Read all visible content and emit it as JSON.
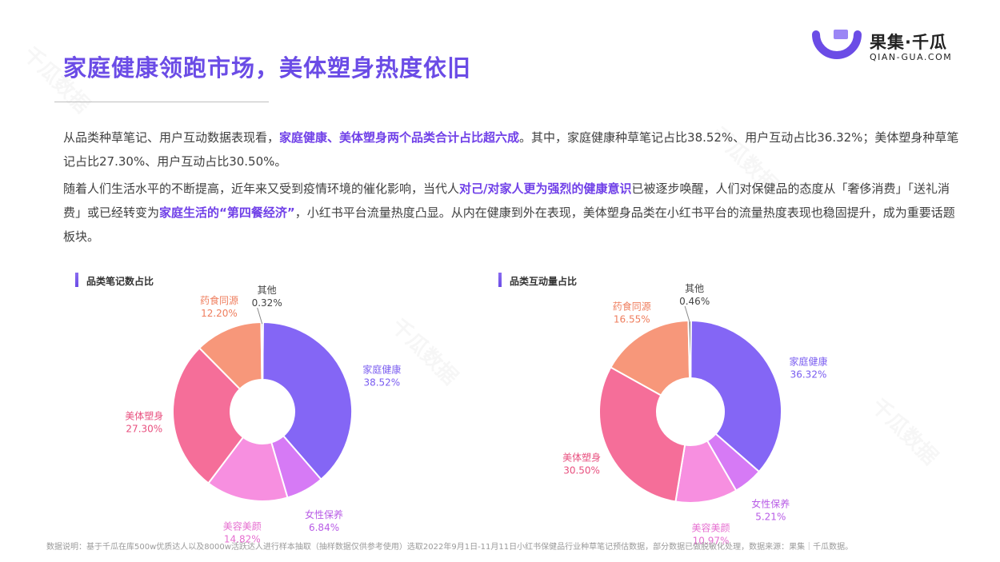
{
  "header": {
    "title": "家庭健康领跑市场，美体塑身热度依旧",
    "logo_cn": "果集·千瓜",
    "logo_en": "QIAN-GUA.COM"
  },
  "body": {
    "p1_a": "从品类种草笔记、用户互动数据表现看，",
    "p1_hl": "家庭健康、美体塑身两个品类合计占比超六成",
    "p1_b": "。其中，家庭健康种草笔记占比38.52%、用户互动占比36.32%；美体塑身种草笔记占比27.30%、用户互动占比30.50%。",
    "p2_a": "随着人们生活水平的不断提高，近年来又受到疫情环境的催化影响，当代人",
    "p2_hl1": "对己/对家人更为强烈的健康意识",
    "p2_b": "已被逐步唤醒，人们对保健品的态度从「奢侈消费」「送礼消费」或已经转变为",
    "p2_hl2": "家庭生活的“第四餐经济”",
    "p2_c": "，小红书平台流量热度凸显。从内在健康到外在表现，美体塑身品类在小红书平台的流量热度表现也稳固提升，成为重要话题板块。"
  },
  "footnote": "数据说明：基于千瓜在库500w优质达人以及8000w活跃达人进行样本抽取（抽样数据仅供参考使用）选取2022年9月1日-11月11日小红书保健品行业种草笔记预估数据，部分数据已做脱敏化处理，数据来源：果集｜千瓜数据。",
  "watermark": "千瓜数据",
  "chart_data": [
    {
      "type": "pie",
      "title": "品类笔记数占比",
      "donut": true,
      "slices": [
        {
          "label": "家庭健康",
          "value": 38.52,
          "pct": "38.52%",
          "color": "#8466f5"
        },
        {
          "label": "女性保养",
          "value": 6.84,
          "pct": "6.84%",
          "color": "#d67af5"
        },
        {
          "label": "美容美颜",
          "value": 14.82,
          "pct": "14.82%",
          "color": "#f78fe0"
        },
        {
          "label": "美体塑身",
          "value": 27.3,
          "pct": "27.30%",
          "color": "#f56e99"
        },
        {
          "label": "药食同源",
          "value": 12.2,
          "pct": "12.20%",
          "color": "#f7977a"
        },
        {
          "label": "其他",
          "value": 0.32,
          "pct": "0.32%",
          "color": "#555555"
        }
      ]
    },
    {
      "type": "pie",
      "title": "品类互动量占比",
      "donut": true,
      "slices": [
        {
          "label": "家庭健康",
          "value": 36.32,
          "pct": "36.32%",
          "color": "#8466f5"
        },
        {
          "label": "女性保养",
          "value": 5.21,
          "pct": "5.21%",
          "color": "#d67af5"
        },
        {
          "label": "美容美颜",
          "value": 10.97,
          "pct": "10.97%",
          "color": "#f78fe0"
        },
        {
          "label": "美体塑身",
          "value": 30.5,
          "pct": "30.50%",
          "color": "#f56e99"
        },
        {
          "label": "药食同源",
          "value": 16.55,
          "pct": "16.55%",
          "color": "#f7977a"
        },
        {
          "label": "其他",
          "value": 0.46,
          "pct": "0.46%",
          "color": "#555555"
        }
      ]
    }
  ]
}
